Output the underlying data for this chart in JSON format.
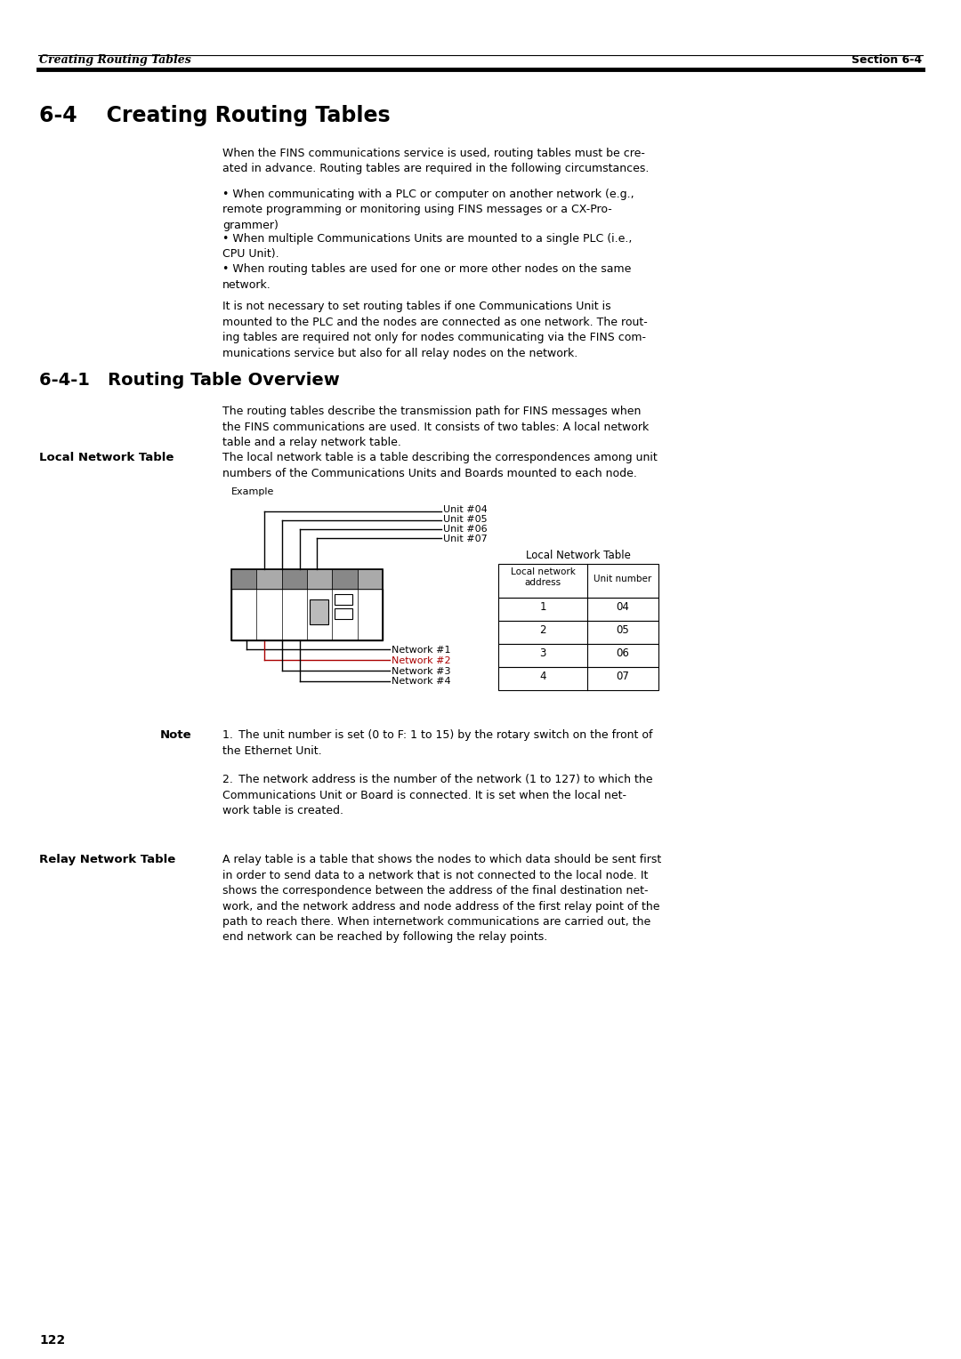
{
  "page_bg": "#ffffff",
  "header_left_text": "Creating Routing Tables",
  "header_right_text": "Section 6-4",
  "section_title": "6-4    Creating Routing Tables",
  "subsection_title": "6-4-1   Routing Table Overview",
  "intro_para": "When the FINS communications service is used, routing tables must be cre-\nated in advance. Routing tables are required in the following circumstances.",
  "bullet1": "When communicating with a PLC or computer on another network (e.g.,\nremote programming or monitoring using FINS messages or a CX-Pro-\ngrammer)",
  "bullet2": "When multiple Communications Units are mounted to a single PLC (i.e.,\nCPU Unit).",
  "bullet3": "When routing tables are used for one or more other nodes on the same\nnetwork.",
  "para_after_bullets": "It is not necessary to set routing tables if one Communications Unit is\nmounted to the PLC and the nodes are connected as one network. The rout-\ning tables are required not only for nodes communicating via the FINS com-\nmunications service but also for all relay nodes on the network.",
  "overview_para": "The routing tables describe the transmission path for FINS messages when\nthe FINS communications are used. It consists of two tables: A local network\ntable and a relay network table.",
  "local_network_label": "Local Network Table",
  "local_network_desc": "The local network table is a table describing the correspondences among unit\nnumbers of the Communications Units and Boards mounted to each node.",
  "example_label": "Example",
  "unit_labels": [
    "Unit #04",
    "Unit #05",
    "Unit #06",
    "Unit #07"
  ],
  "network_labels": [
    "Network #1",
    "Network #2",
    "Network #3",
    "Network #4"
  ],
  "network_colors": [
    "#000000",
    "#aa0000",
    "#000000",
    "#000000"
  ],
  "table_title": "Local Network Table",
  "table_header_col1": "Local network\naddress",
  "table_header_col2": "Unit number",
  "table_rows": [
    [
      "1",
      "04"
    ],
    [
      "2",
      "05"
    ],
    [
      "3",
      "06"
    ],
    [
      "4",
      "07"
    ]
  ],
  "note_label": "Note",
  "note1": "The unit number is set (0 to F: 1 to 15) by the rotary switch on the front of\nthe Ethernet Unit.",
  "note2": "The network address is the number of the network (1 to 127) to which the\nCommunications Unit or Board is connected. It is set when the local net-\nwork table is created.",
  "relay_label": "Relay Network Table",
  "relay_desc": "A relay table is a table that shows the nodes to which data should be sent first\nin order to send data to a network that is not connected to the local node. It\nshows the correspondence between the address of the final destination net-\nwork, and the network address and node address of the first relay point of the\npath to reach there. When internetwork communications are carried out, the\nend network can be reached by following the relay points.",
  "page_number": "122"
}
